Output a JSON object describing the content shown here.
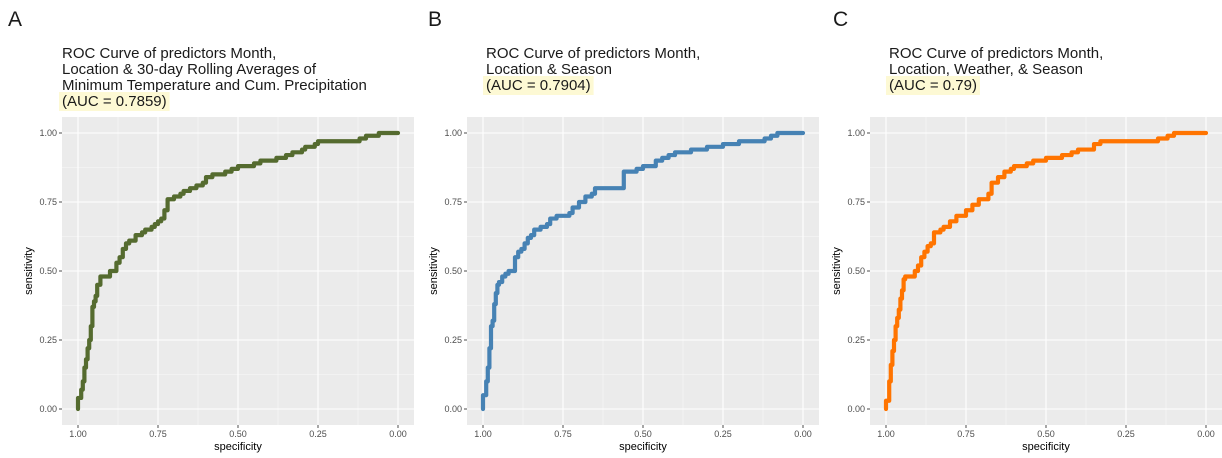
{
  "colors": {
    "panel_bg": "#ebebeb",
    "grid_major": "#ffffff",
    "auc_highlight": "#fdf9d4",
    "tick": "#4d4d4d"
  },
  "chart_data": [
    {
      "type": "line",
      "panel_letter": "A",
      "title_lines": [
        "ROC Curve of predictors Month,",
        "Location & 30-day Rolling Averages of",
        "Minimum Temperature and Cum. Precipitation"
      ],
      "auc_label": " (AUC = 0.7859)",
      "xlabel": "specificity",
      "ylabel": "sensitivity",
      "xlim": [
        1.0,
        0.0
      ],
      "ylim": [
        0.0,
        1.0
      ],
      "x_reversed": true,
      "grid": true,
      "xticks": [
        "1.00",
        "0.75",
        "0.50",
        "0.25",
        "0.00"
      ],
      "yticks": [
        "0.00",
        "0.25",
        "0.50",
        "0.75",
        "1.00"
      ],
      "series": [
        {
          "color": "#556b2f",
          "x": [
            1.0,
            0.99,
            0.985,
            0.98,
            0.975,
            0.97,
            0.965,
            0.96,
            0.955,
            0.95,
            0.945,
            0.94,
            0.93,
            0.92,
            0.9,
            0.88,
            0.87,
            0.86,
            0.85,
            0.84,
            0.83,
            0.82,
            0.8,
            0.79,
            0.77,
            0.76,
            0.75,
            0.74,
            0.73,
            0.72,
            0.71,
            0.7,
            0.68,
            0.67,
            0.65,
            0.63,
            0.61,
            0.6,
            0.58,
            0.57,
            0.54,
            0.52,
            0.5,
            0.47,
            0.45,
            0.43,
            0.4,
            0.38,
            0.35,
            0.33,
            0.3,
            0.29,
            0.26,
            0.25,
            0.22,
            0.2,
            0.15,
            0.12,
            0.1,
            0.08,
            0.06,
            0.05,
            0.03,
            0.0
          ],
          "y": [
            0.0,
            0.04,
            0.07,
            0.1,
            0.15,
            0.18,
            0.22,
            0.25,
            0.3,
            0.37,
            0.39,
            0.41,
            0.45,
            0.48,
            0.48,
            0.5,
            0.53,
            0.55,
            0.58,
            0.6,
            0.61,
            0.61,
            0.63,
            0.64,
            0.65,
            0.66,
            0.67,
            0.68,
            0.69,
            0.72,
            0.76,
            0.76,
            0.77,
            0.78,
            0.79,
            0.8,
            0.81,
            0.82,
            0.84,
            0.85,
            0.85,
            0.86,
            0.87,
            0.88,
            0.88,
            0.89,
            0.9,
            0.9,
            0.91,
            0.92,
            0.93,
            0.94,
            0.95,
            0.96,
            0.97,
            0.97,
            0.97,
            0.97,
            0.98,
            0.99,
            0.99,
            1.0,
            1.0,
            1.0
          ]
        }
      ]
    },
    {
      "type": "line",
      "panel_letter": "B",
      "title_lines": [
        "ROC Curve of predictors Month,",
        "Location & Season"
      ],
      "auc_label": "(AUC = 0.7904)",
      "xlabel": "specificity",
      "ylabel": "sensitivity",
      "xlim": [
        1.0,
        0.0
      ],
      "ylim": [
        0.0,
        1.0
      ],
      "x_reversed": true,
      "grid": true,
      "xticks": [
        "1.00",
        "0.75",
        "0.50",
        "0.25",
        "0.00"
      ],
      "yticks": [
        "0.00",
        "0.25",
        "0.50",
        "0.75",
        "1.00"
      ],
      "series": [
        {
          "color": "#4682b4",
          "x": [
            1.0,
            0.99,
            0.985,
            0.98,
            0.975,
            0.97,
            0.965,
            0.96,
            0.955,
            0.95,
            0.94,
            0.93,
            0.92,
            0.91,
            0.9,
            0.89,
            0.88,
            0.87,
            0.86,
            0.85,
            0.84,
            0.82,
            0.8,
            0.79,
            0.77,
            0.75,
            0.73,
            0.72,
            0.7,
            0.68,
            0.66,
            0.65,
            0.63,
            0.6,
            0.56,
            0.55,
            0.52,
            0.5,
            0.48,
            0.46,
            0.44,
            0.42,
            0.4,
            0.37,
            0.35,
            0.3,
            0.28,
            0.25,
            0.22,
            0.2,
            0.15,
            0.12,
            0.1,
            0.08,
            0.05,
            0.03,
            0.0
          ],
          "y": [
            0.0,
            0.05,
            0.1,
            0.15,
            0.22,
            0.3,
            0.32,
            0.38,
            0.42,
            0.45,
            0.46,
            0.48,
            0.49,
            0.5,
            0.5,
            0.55,
            0.57,
            0.58,
            0.6,
            0.62,
            0.63,
            0.65,
            0.66,
            0.67,
            0.69,
            0.7,
            0.7,
            0.71,
            0.73,
            0.75,
            0.77,
            0.78,
            0.8,
            0.8,
            0.8,
            0.86,
            0.86,
            0.87,
            0.88,
            0.88,
            0.9,
            0.91,
            0.92,
            0.93,
            0.93,
            0.94,
            0.95,
            0.95,
            0.96,
            0.96,
            0.97,
            0.97,
            0.98,
            0.99,
            1.0,
            1.0,
            1.0
          ]
        }
      ]
    },
    {
      "type": "line",
      "panel_letter": "C",
      "title_lines": [
        "ROC Curve of predictors Month,",
        "Location, Weather, & Season"
      ],
      "auc_label": "(AUC = 0.79)",
      "xlabel": "specificity",
      "ylabel": "sensitivity",
      "xlim": [
        1.0,
        0.0
      ],
      "ylim": [
        0.0,
        1.0
      ],
      "x_reversed": true,
      "grid": true,
      "xticks": [
        "1.00",
        "0.75",
        "0.50",
        "0.25",
        "0.00"
      ],
      "yticks": [
        "0.00",
        "0.25",
        "0.50",
        "0.75",
        "1.00"
      ],
      "series": [
        {
          "color": "#ff7400",
          "x": [
            1.0,
            0.99,
            0.985,
            0.98,
            0.975,
            0.97,
            0.965,
            0.96,
            0.955,
            0.95,
            0.945,
            0.94,
            0.93,
            0.91,
            0.9,
            0.89,
            0.88,
            0.87,
            0.86,
            0.85,
            0.83,
            0.82,
            0.8,
            0.78,
            0.76,
            0.75,
            0.73,
            0.71,
            0.7,
            0.68,
            0.67,
            0.65,
            0.63,
            0.61,
            0.6,
            0.58,
            0.56,
            0.54,
            0.52,
            0.5,
            0.47,
            0.45,
            0.42,
            0.4,
            0.38,
            0.35,
            0.33,
            0.3,
            0.28,
            0.26,
            0.25,
            0.2,
            0.15,
            0.12,
            0.1,
            0.08,
            0.05,
            0.03,
            0.0
          ],
          "y": [
            0.0,
            0.03,
            0.1,
            0.16,
            0.21,
            0.25,
            0.3,
            0.33,
            0.36,
            0.4,
            0.43,
            0.47,
            0.48,
            0.48,
            0.5,
            0.52,
            0.55,
            0.57,
            0.59,
            0.6,
            0.64,
            0.65,
            0.66,
            0.68,
            0.7,
            0.7,
            0.72,
            0.74,
            0.76,
            0.76,
            0.78,
            0.82,
            0.84,
            0.86,
            0.87,
            0.88,
            0.88,
            0.89,
            0.9,
            0.9,
            0.91,
            0.91,
            0.92,
            0.93,
            0.94,
            0.94,
            0.96,
            0.97,
            0.97,
            0.97,
            0.97,
            0.97,
            0.97,
            0.98,
            0.99,
            1.0,
            1.0,
            1.0,
            1.0
          ]
        }
      ]
    }
  ]
}
